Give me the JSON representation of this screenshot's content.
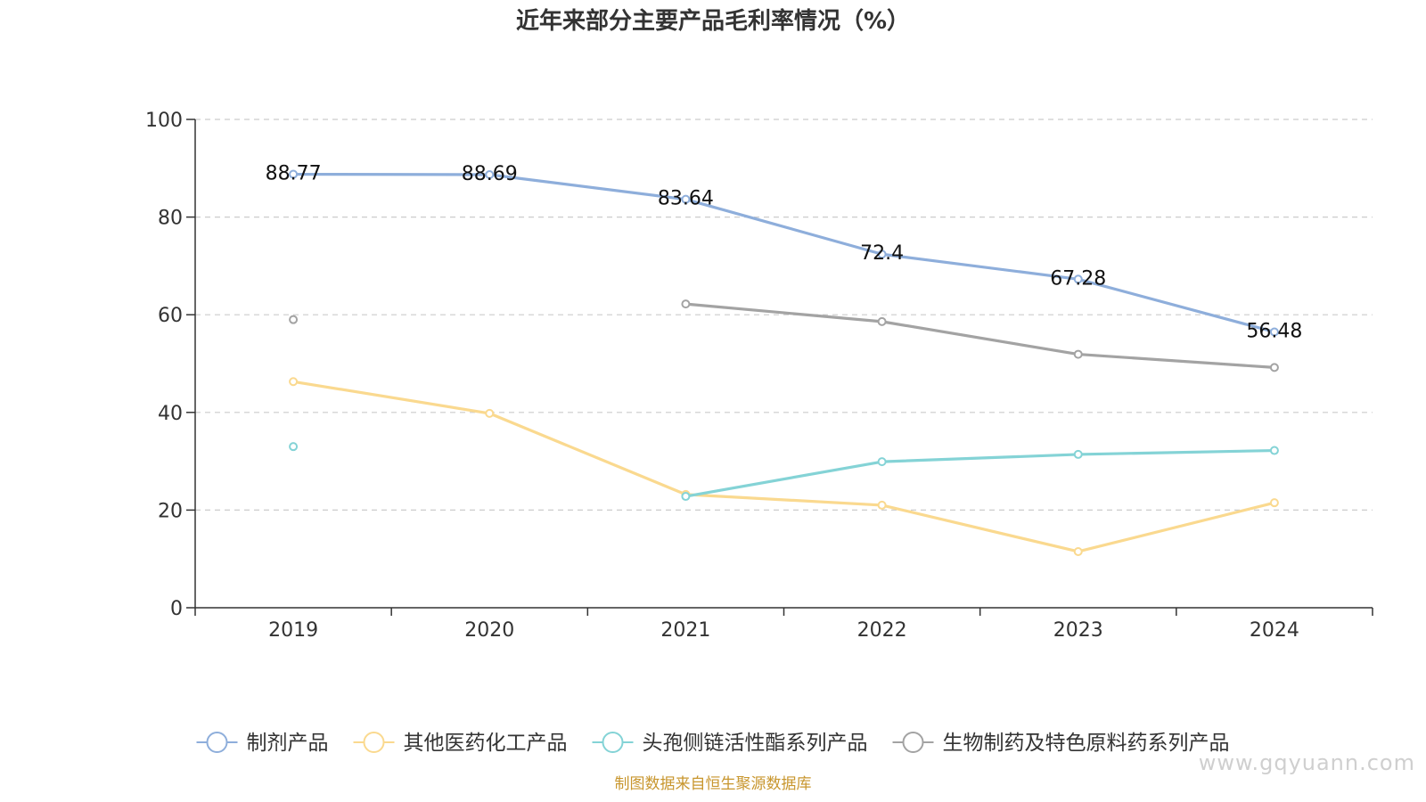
{
  "title": "近年来部分主要产品毛利率情况（%）",
  "footer_text": "制图数据来自恒生聚源数据库",
  "watermark_text": "www.gqyuann.com",
  "colors": {
    "footer": "#c8962e",
    "axis": "#333333",
    "grid": "#cccccc"
  },
  "chart_data": {
    "type": "line",
    "title": "近年来部分主要产品毛利率情况（%）",
    "categories": [
      "2019",
      "2020",
      "2021",
      "2022",
      "2023",
      "2024"
    ],
    "ylim": [
      0,
      100
    ],
    "yticks": [
      "0",
      "20",
      "40",
      "60",
      "80",
      "100"
    ],
    "grid": true,
    "legend_position": "bottom",
    "series": [
      {
        "name": "制剂产品",
        "color": "#8eaedb",
        "values": [
          88.77,
          88.69,
          83.64,
          72.4,
          67.28,
          56.48
        ],
        "labels": [
          "88.77",
          "88.69",
          "83.64",
          "72.4",
          "67.28",
          "56.48"
        ],
        "show_labels": true
      },
      {
        "name": "其他医药化工产品",
        "color": "#fad98f",
        "values": [
          46.3,
          39.8,
          23.2,
          21.0,
          11.5,
          21.5
        ],
        "show_labels": false
      },
      {
        "name": "头孢侧链活性酯系列产品",
        "color": "#84d3d6",
        "values": [
          33.0,
          null,
          22.8,
          29.9,
          31.4,
          32.2
        ],
        "show_labels": false
      },
      {
        "name": "生物制药及特色原料药系列产品",
        "color": "#a3a3a3",
        "values": [
          59.0,
          null,
          62.2,
          58.6,
          51.9,
          49.2
        ],
        "show_labels": false
      }
    ]
  }
}
